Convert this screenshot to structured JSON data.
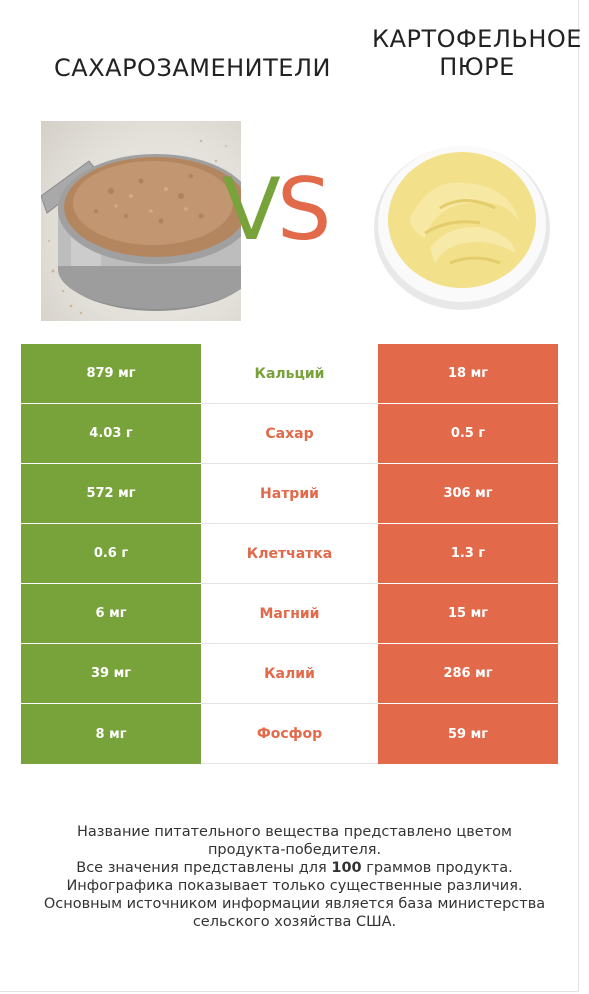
{
  "left_title": "САХАРОЗАМЕНИТЕЛИ",
  "right_title": "КАРТОФЕЛЬНОЕ\nПЮРЕ",
  "vs": {
    "v": "V",
    "s": "S"
  },
  "colors": {
    "green": "#78a23a",
    "red": "#e2694a"
  },
  "rows": [
    {
      "left": "879 мг",
      "nutrient": "Кальций",
      "right": "18 мг",
      "winner": "green"
    },
    {
      "left": "4.03 г",
      "nutrient": "Сахар",
      "right": "0.5 г",
      "winner": "red"
    },
    {
      "left": "572 мг",
      "nutrient": "Натрий",
      "right": "306 мг",
      "winner": "red"
    },
    {
      "left": "0.6 г",
      "nutrient": "Клетчатка",
      "right": "1.3 г",
      "winner": "red"
    },
    {
      "left": "6 мг",
      "nutrient": "Магний",
      "right": "15 мг",
      "winner": "red"
    },
    {
      "left": "39 мг",
      "nutrient": "Калий",
      "right": "286 мг",
      "winner": "red"
    },
    {
      "left": "8 мг",
      "nutrient": "Фосфор",
      "right": "59 мг",
      "winner": "red"
    }
  ],
  "footer": {
    "line1": "Название питательного вещества представлено цветом",
    "line2": "продукта-победителя.",
    "line3_pre": "Все значения представлены для ",
    "line3_bold": "100",
    "line3_post": " граммов продукта.",
    "line4": "Инфографика показывает только существенные различия.",
    "line5": "Основным источником информации является база министерства",
    "line6": "сельского хозяйства США."
  }
}
